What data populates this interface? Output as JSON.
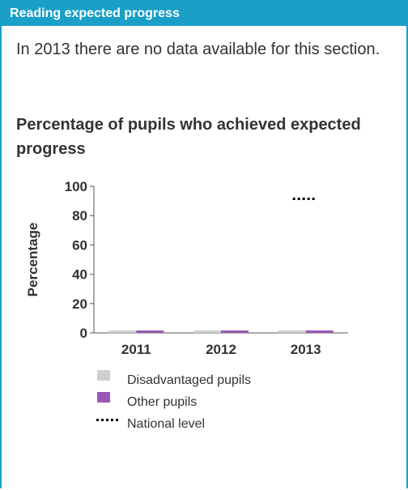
{
  "section": {
    "title": "Reading expected progress",
    "message": "In 2013 there are no data available for this section."
  },
  "chart_data": {
    "type": "bar",
    "title": "Percentage of pupils who achieved expected progress",
    "xlabel": "",
    "ylabel": "Percentage",
    "ylim": [
      0,
      100
    ],
    "yticks": [
      0,
      20,
      40,
      60,
      80,
      100
    ],
    "categories": [
      "2011",
      "2012",
      "2013"
    ],
    "series": [
      {
        "name": "Disadvantaged pupils",
        "color": "#cfcfcf",
        "values": [
          0,
          0,
          0
        ]
      },
      {
        "name": "Other pupils",
        "color": "#9b59b6",
        "values": [
          0,
          0,
          0
        ]
      }
    ],
    "national_level": {
      "name": "National level",
      "style": "dotted",
      "color": "#000000"
    },
    "legend_position": "bottom",
    "grid": false
  }
}
